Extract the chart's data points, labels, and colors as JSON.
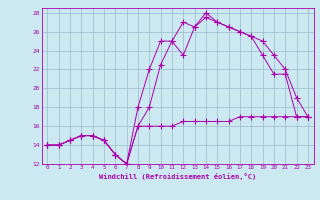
{
  "xlabel": "Windchill (Refroidissement éolien,°C)",
  "bg_color": "#cce8f0",
  "line_color": "#aa00aa",
  "grid_color": "#99bbcc",
  "xlim": [
    -0.5,
    23.5
  ],
  "ylim": [
    12,
    28.5
  ],
  "yticks": [
    12,
    14,
    16,
    18,
    20,
    22,
    24,
    26,
    28
  ],
  "xticks": [
    0,
    1,
    2,
    3,
    4,
    5,
    6,
    7,
    8,
    9,
    10,
    11,
    12,
    13,
    14,
    15,
    16,
    17,
    18,
    19,
    20,
    21,
    22,
    23
  ],
  "line1_x": [
    0,
    1,
    2,
    3,
    4,
    5,
    6,
    7,
    8,
    9,
    10,
    11,
    12,
    13,
    14,
    15,
    16,
    17,
    18,
    19,
    20,
    21,
    22,
    23
  ],
  "line1_y": [
    14,
    14,
    14.5,
    15,
    15,
    14.5,
    13,
    12,
    16,
    16,
    16,
    16,
    16.5,
    16.5,
    16.5,
    16.5,
    16.5,
    17,
    17,
    17,
    17,
    17,
    17,
    17
  ],
  "line2_x": [
    0,
    1,
    2,
    3,
    4,
    5,
    6,
    7,
    8,
    9,
    10,
    11,
    12,
    13,
    14,
    15,
    16,
    17,
    18,
    19,
    20,
    21,
    22,
    23
  ],
  "line2_y": [
    14,
    14,
    14.5,
    15,
    15,
    14.5,
    13,
    12,
    16,
    18,
    22.5,
    25,
    23.5,
    26.5,
    27.5,
    27,
    26.5,
    26,
    25.5,
    25,
    23.5,
    22,
    19,
    17
  ],
  "line3_x": [
    0,
    1,
    2,
    3,
    4,
    5,
    6,
    7,
    8,
    9,
    10,
    11,
    12,
    13,
    14,
    15,
    16,
    17,
    18,
    19,
    20,
    21,
    22,
    23
  ],
  "line3_y": [
    14,
    14,
    14.5,
    15,
    15,
    14.5,
    13,
    12,
    18,
    22,
    25,
    25,
    27,
    26.5,
    28,
    27,
    26.5,
    26,
    25.5,
    23.5,
    21.5,
    21.5,
    17,
    17
  ]
}
